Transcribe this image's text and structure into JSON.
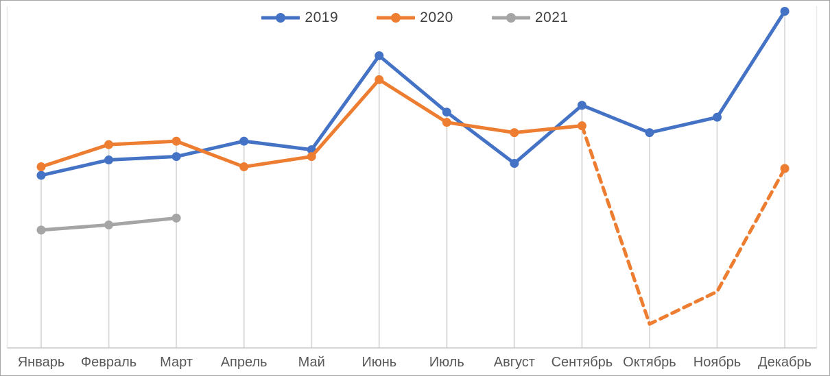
{
  "chart_data": {
    "type": "line",
    "title": "",
    "xlabel": "",
    "ylabel": "",
    "categories": [
      "Январь",
      "Февраль",
      "Март",
      "Апрель",
      "Май",
      "Июнь",
      "Июль",
      "Август",
      "Сентябрь",
      "Октябрь",
      "Ноябрь",
      "Декабрь"
    ],
    "series": [
      {
        "name": "2019",
        "color": "#4472C4",
        "line_style": "solid",
        "values": [
          50.5,
          55,
          56,
          60.5,
          58,
          85.5,
          69,
          54,
          71,
          63,
          67.5,
          98.5
        ]
      },
      {
        "name": "2020",
        "color": "#ED7D31",
        "line_style": "solid-then-dashed",
        "dashed_from_index": 8,
        "marker_skip_indices": [
          9,
          10
        ],
        "values": [
          53,
          59.5,
          60.5,
          53,
          56,
          78.5,
          66,
          63,
          65,
          7,
          16.5,
          52.5
        ]
      },
      {
        "name": "2021",
        "color": "#A5A5A5",
        "line_style": "solid",
        "values": [
          34.5,
          36,
          38,
          null,
          null,
          null,
          null,
          null,
          null,
          null,
          null,
          null
        ]
      }
    ],
    "ylim": [
      0,
      100
    ],
    "y_axis_visible": false,
    "grid": "vertical drop lines from each top data point to x-axis",
    "legend_position": "top-center",
    "legend_entries": [
      "2019",
      "2020",
      "2021"
    ]
  },
  "styles": {
    "frame_border_color": "#a6a6a6",
    "drop_line_color": "#dcdcdc",
    "plot_edge_color": "#e9e9e9",
    "axis_line_color": "#c8c8c8",
    "x_label_color": "#595959",
    "legend_text_color": "#404040",
    "background_color": "#ffffff"
  }
}
